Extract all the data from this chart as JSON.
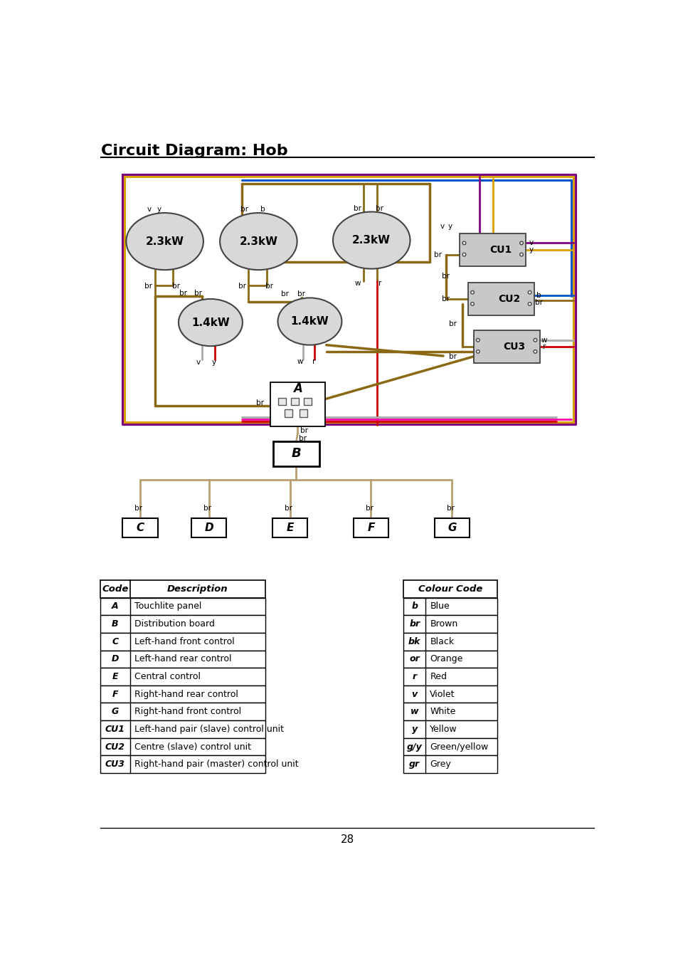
{
  "title": "Circuit Diagram: Hob",
  "page_number": "28",
  "bg": "#ffffff",
  "colors": {
    "brown": "#8B6914",
    "brown_light": "#B8A070",
    "purple": "#800080",
    "yellow": "#DAA000",
    "blue": "#0055CC",
    "red": "#CC0000",
    "pink": "#FF00AA",
    "white_wire": "#AAAAAA",
    "gray_coil": "#D8D8D8",
    "gray_cu": "#C8C8C8",
    "black": "#000000"
  },
  "code_table": {
    "headers": [
      "Code",
      "Description"
    ],
    "rows": [
      [
        "A",
        "Touchlite panel"
      ],
      [
        "B",
        "Distribution board"
      ],
      [
        "C",
        "Left-hand front control"
      ],
      [
        "D",
        "Left-hand rear control"
      ],
      [
        "E",
        "Central control"
      ],
      [
        "F",
        "Right-hand rear control"
      ],
      [
        "G",
        "Right-hand front control"
      ],
      [
        "CU1",
        "Left-hand pair (slave) control unit"
      ],
      [
        "CU2",
        "Centre (slave) control unit"
      ],
      [
        "CU3",
        "Right-hand pair (master) control unit"
      ]
    ]
  },
  "colour_table": {
    "header": "Colour Code",
    "rows": [
      [
        "b",
        "Blue"
      ],
      [
        "br",
        "Brown"
      ],
      [
        "bk",
        "Black"
      ],
      [
        "or",
        "Orange"
      ],
      [
        "r",
        "Red"
      ],
      [
        "v",
        "Violet"
      ],
      [
        "w",
        "White"
      ],
      [
        "y",
        "Yellow"
      ],
      [
        "g/y",
        "Green/yellow"
      ],
      [
        "gr",
        "Grey"
      ]
    ]
  }
}
